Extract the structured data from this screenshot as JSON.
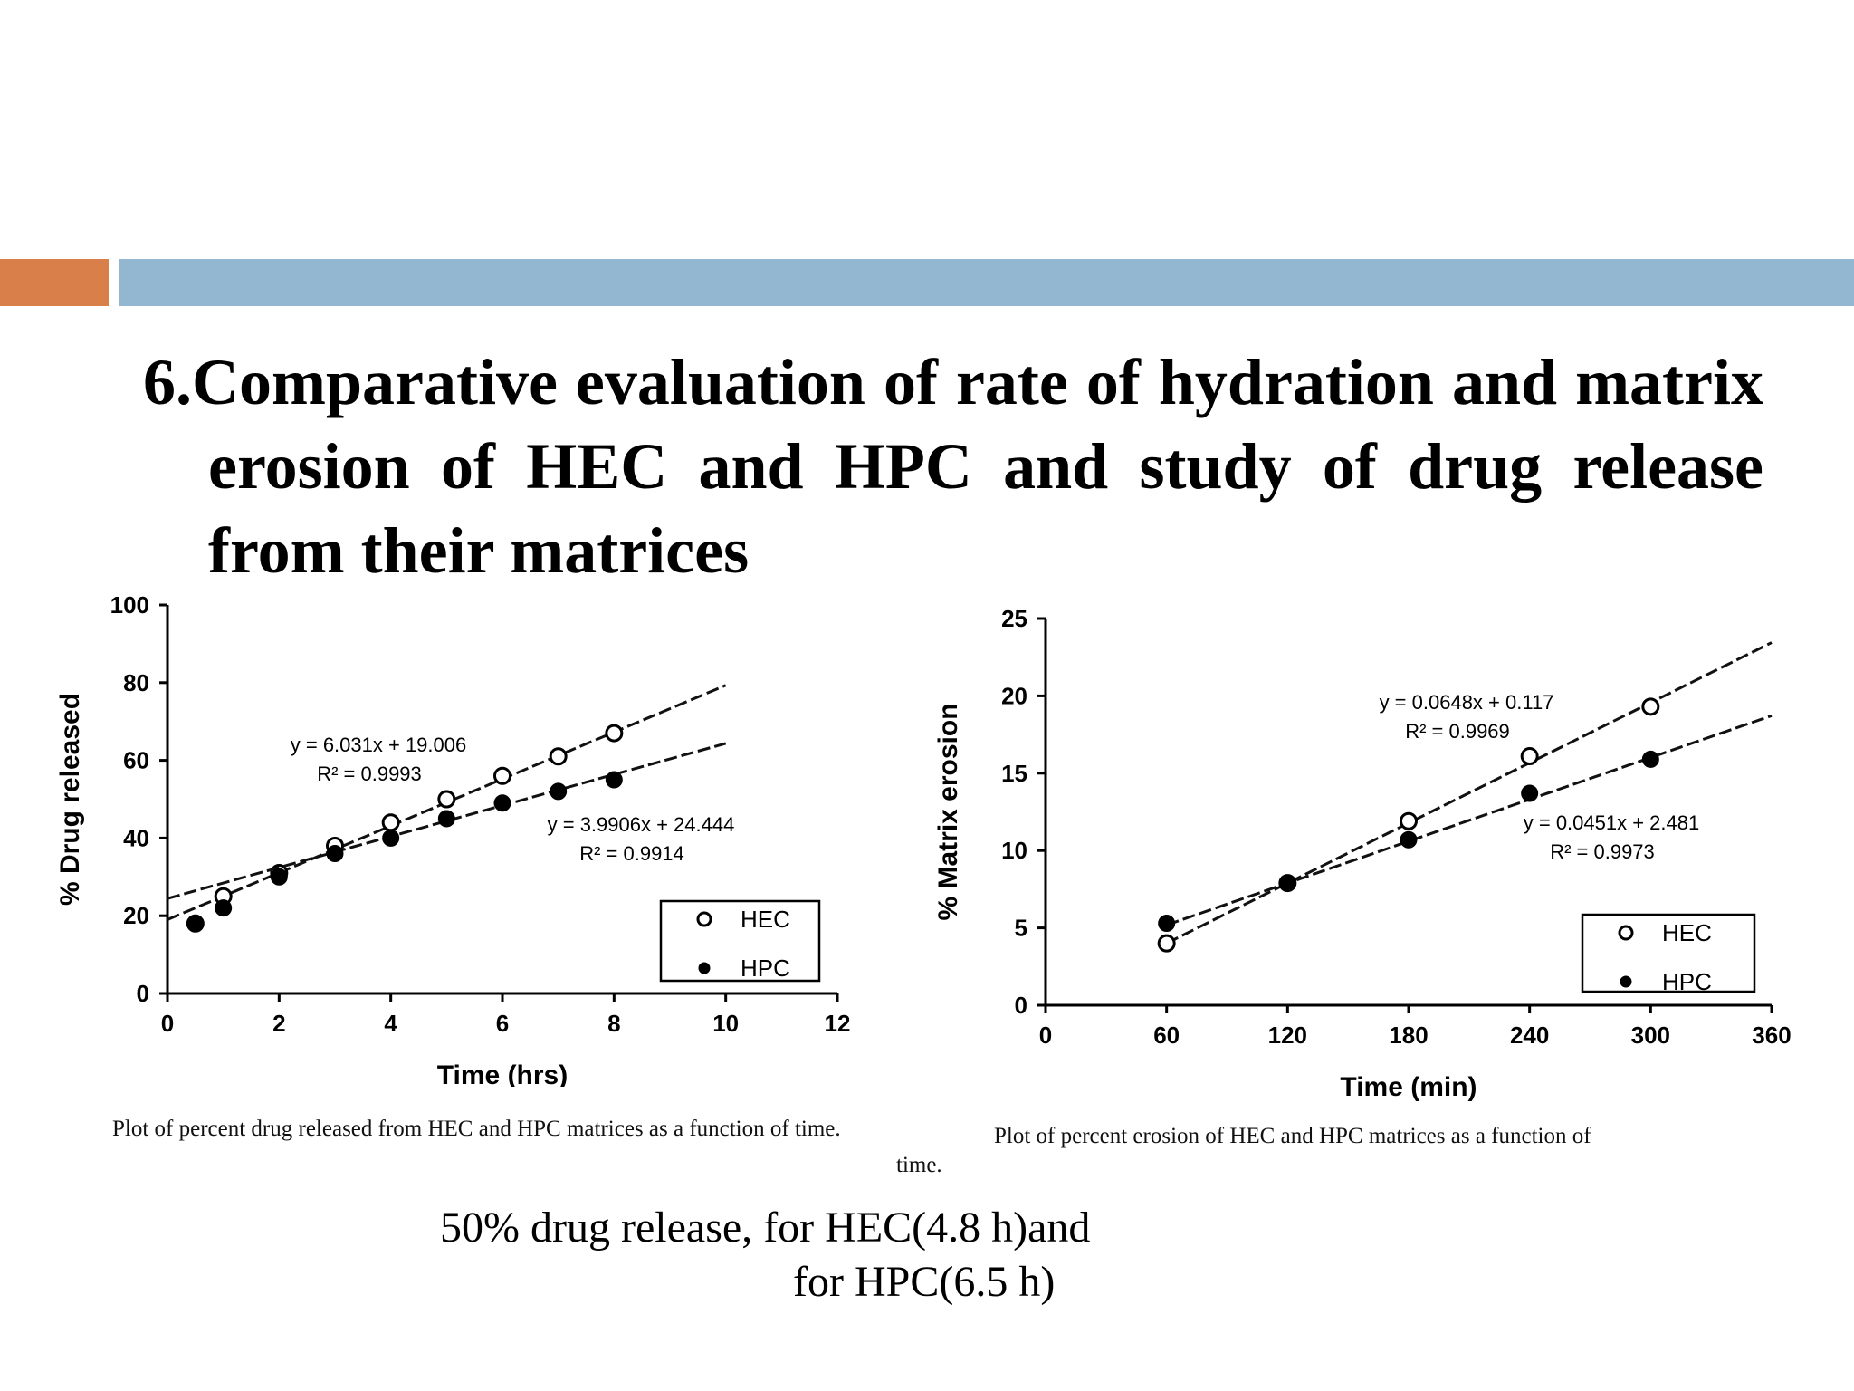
{
  "slide": {
    "title": "6.Comparative evaluation of rate of hydration and matrix erosion of HEC and HPC and study of drug release from their matrices",
    "accent_colors": {
      "orange": "#d9804a",
      "blue": "#93b6d1"
    },
    "note_line1": "50% drug release, for HEC(4.8 h)and",
    "note_line2": "for HPC(6.5 h)"
  },
  "chart_data": [
    {
      "type": "scatter",
      "xlabel": "Time (hrs)",
      "ylabel": "% Drug released",
      "xlim": [
        0,
        12
      ],
      "ylim": [
        0,
        100
      ],
      "xticks": [
        "0",
        "2",
        "4",
        "6",
        "8",
        "10",
        "12"
      ],
      "yticks": [
        "0",
        "20",
        "40",
        "60",
        "80",
        "100"
      ],
      "legend": [
        "HEC",
        "HPC"
      ],
      "legend_position": "bottom-right",
      "series": [
        {
          "name": "HEC",
          "marker": "open-circle",
          "x": [
            0.5,
            1,
            2,
            3,
            4,
            5,
            6,
            7,
            8
          ],
          "y": [
            18,
            25,
            31,
            38,
            44,
            50,
            56,
            61,
            67
          ],
          "fit": {
            "equation": "y = 6.031x + 19.006",
            "r2": "R² = 0.9993",
            "slope": 6.031,
            "intercept": 19.006,
            "x_range": [
              0,
              10
            ]
          }
        },
        {
          "name": "HPC",
          "marker": "filled-circle",
          "x": [
            0.5,
            1,
            2,
            3,
            4,
            5,
            6,
            7,
            8
          ],
          "y": [
            18,
            22,
            30,
            36,
            40,
            45,
            49,
            52,
            55
          ],
          "fit": {
            "equation": "y = 3.9906x + 24.444",
            "r2": "R² = 0.9914",
            "slope": 3.9906,
            "intercept": 24.444,
            "x_range": [
              0,
              10
            ]
          }
        }
      ],
      "caption": "Plot of percent drug released from HEC and HPC matrices as a function of time."
    },
    {
      "type": "scatter",
      "xlabel": "Time (min)",
      "ylabel": "% Matrix erosion",
      "xlim": [
        0,
        360
      ],
      "ylim": [
        0,
        25
      ],
      "xticks": [
        "0",
        "60",
        "120",
        "180",
        "240",
        "300",
        "360"
      ],
      "yticks": [
        "0",
        "5",
        "10",
        "15",
        "20",
        "25"
      ],
      "legend": [
        "HEC",
        "HPC"
      ],
      "legend_position": "bottom-right",
      "series": [
        {
          "name": "HEC",
          "marker": "open-circle",
          "x": [
            60,
            120,
            180,
            240,
            300
          ],
          "y": [
            4.0,
            7.9,
            11.9,
            16.1,
            19.3
          ],
          "fit": {
            "equation": "y = 0.0648x + 0.117",
            "r2": "R² = 0.9969",
            "slope": 0.0648,
            "intercept": 0.117,
            "x_range": [
              60,
              360
            ]
          }
        },
        {
          "name": "HPC",
          "marker": "filled-circle",
          "x": [
            60,
            120,
            180,
            240,
            300
          ],
          "y": [
            5.3,
            7.9,
            10.7,
            13.7,
            15.9
          ],
          "fit": {
            "equation": "y = 0.0451x + 2.481",
            "r2": "R² = 0.9973",
            "slope": 0.0451,
            "intercept": 2.481,
            "x_range": [
              60,
              360
            ]
          }
        }
      ],
      "caption": "Plot of percent erosion of HEC and HPC matrices as a function of time."
    }
  ],
  "captions": {
    "left_main": "Plot of percent drug released from HEC and HPC matrices as a function of time.",
    "left_tail": "time.",
    "right_main": "Plot of percent erosion of HEC and HPC matrices as a function of"
  }
}
